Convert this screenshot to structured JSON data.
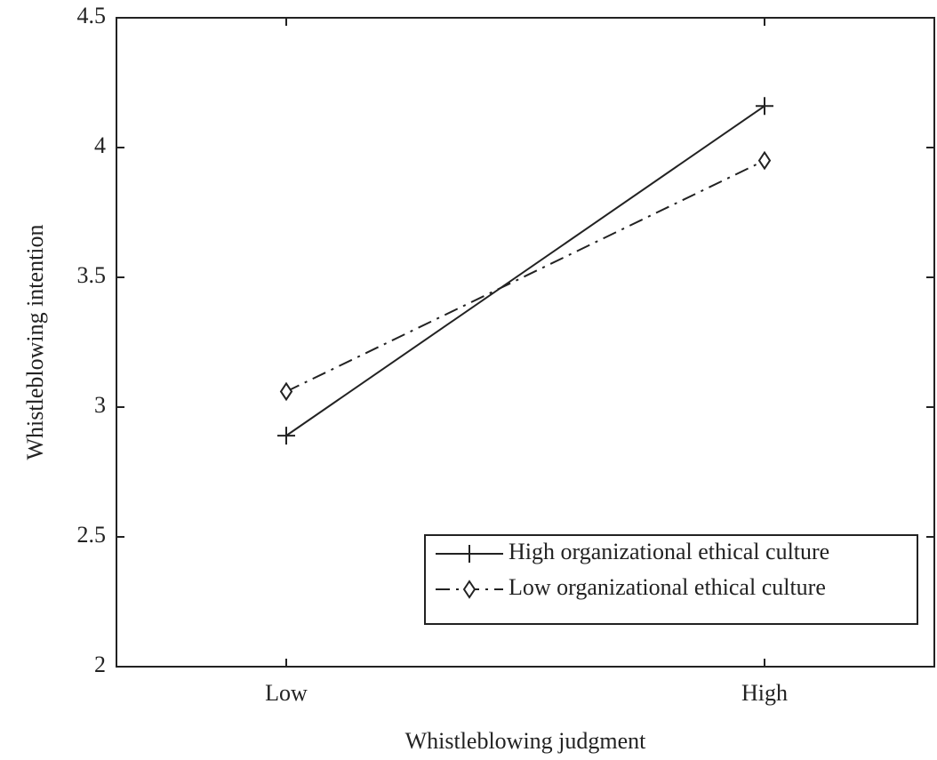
{
  "chart_data": {
    "type": "line",
    "x_label": "Whistleblowing judgment",
    "y_label": "Whistleblowing intention",
    "categories": [
      "Low",
      "High"
    ],
    "series": [
      {
        "name": "High organizational ethical culture",
        "color": "#222222",
        "line_style": "solid",
        "marker": "plus",
        "values": [
          2.89,
          4.16
        ]
      },
      {
        "name": "Low organizational ethical culture",
        "color": "#222222",
        "line_style": "dashdot",
        "marker": "diamond",
        "values": [
          3.06,
          3.95
        ]
      }
    ],
    "ylim": [
      2,
      4.5
    ],
    "yticks": [
      2,
      2.5,
      3,
      3.5,
      4,
      4.5
    ],
    "grid": false,
    "legend": "lower right"
  }
}
